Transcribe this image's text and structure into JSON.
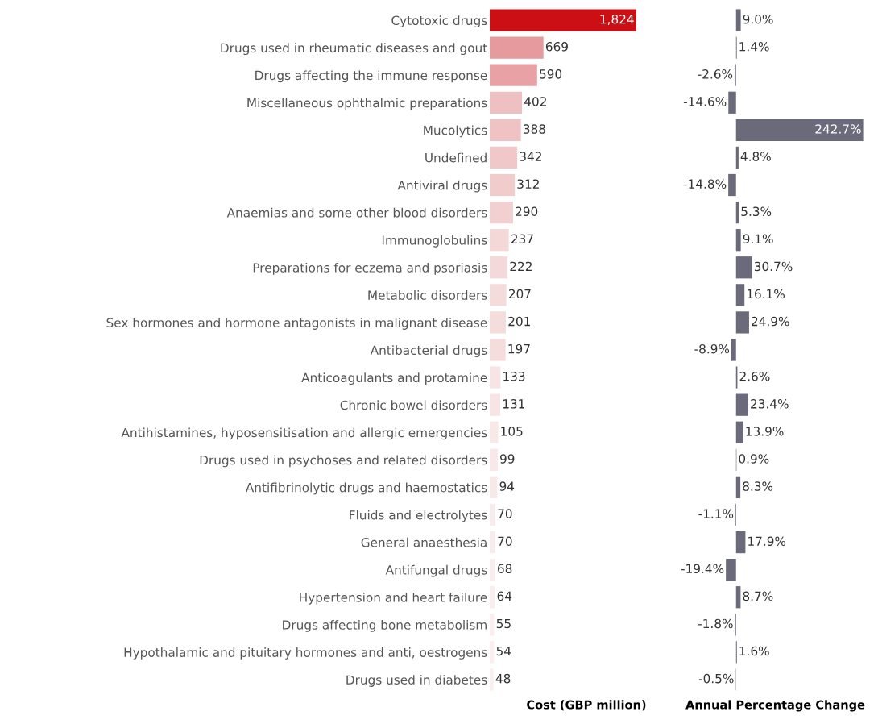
{
  "chart_data": [
    {
      "type": "bar",
      "orientation": "horizontal",
      "xlabel": "Cost (GBP million)",
      "tick_labels": "y",
      "categories": [
        "Cytotoxic drugs",
        "Drugs used in rheumatic diseases and gout",
        "Drugs affecting the immune response",
        "Miscellaneous ophthalmic preparations",
        "Mucolytics",
        "Undefined",
        "Antiviral drugs",
        "Anaemias and some other blood disorders",
        "Immunoglobulins",
        "Preparations for eczema and psoriasis",
        "Metabolic disorders",
        "Sex hormones and hormone antagonists in malignant disease",
        "Antibacterial drugs",
        "Anticoagulants and protamine",
        "Chronic bowel disorders",
        "Antihistamines, hyposensitisation and allergic emergencies",
        "Drugs used in psychoses and related disorders",
        "Antifibrinolytic drugs and haemostatics",
        "Fluids and electrolytes",
        "General anaesthesia",
        "Antifungal drugs",
        "Hypertension and heart failure",
        "Drugs affecting bone metabolism",
        "Hypothalamic and pituitary hormones and anti, oestrogens",
        "Drugs used in diabetes"
      ],
      "values": [
        1824,
        669,
        590,
        402,
        388,
        342,
        312,
        290,
        237,
        222,
        207,
        201,
        197,
        133,
        131,
        105,
        99,
        94,
        70,
        70,
        68,
        64,
        55,
        54,
        48
      ],
      "value_labels": [
        "1,824",
        "669",
        "590",
        "402",
        "388",
        "342",
        "312",
        "290",
        "237",
        "222",
        "207",
        "201",
        "197",
        "133",
        "131",
        "105",
        "99",
        "94",
        "70",
        "70",
        "68",
        "64",
        "55",
        "54",
        "48"
      ],
      "colors": [
        "#cc0f14",
        "#e69a9d",
        "#e8a2a5",
        "#efc0c1",
        "#efc2c3",
        "#f0c8c9",
        "#f1cccd",
        "#f2d0d1",
        "#f4d8d8",
        "#f4d9da",
        "#f5dcdc",
        "#f5dcdd",
        "#f5dddd",
        "#f7e4e4",
        "#f7e4e5",
        "#f8e8e8",
        "#f8e8e9",
        "#f8e9e9",
        "#f9ecec",
        "#f9ecec",
        "#f9ecec",
        "#f9eded",
        "#faeeee",
        "#faeeee",
        "#faefef"
      ]
    },
    {
      "type": "bar",
      "orientation": "horizontal",
      "xlabel": "Annual Percentage Change",
      "tick_labels": false,
      "categories": [
        null,
        null,
        null,
        null,
        null,
        null,
        null,
        null,
        null,
        null,
        null,
        null,
        null,
        null,
        null,
        null,
        null,
        null,
        null,
        null,
        null,
        null,
        null,
        null,
        null
      ],
      "values": [
        9.0,
        1.4,
        -2.6,
        -14.6,
        242.7,
        4.8,
        -14.8,
        5.3,
        9.1,
        30.7,
        16.1,
        24.9,
        -8.9,
        2.6,
        23.4,
        13.9,
        0.9,
        8.3,
        -1.1,
        17.9,
        -19.4,
        8.7,
        -1.8,
        1.6,
        -0.5
      ],
      "value_labels": [
        "9.0%",
        "1.4%",
        "-2.6%",
        "-14.6%",
        "242.7%",
        "4.8%",
        "-14.8%",
        "5.3%",
        "9.1%",
        "30.7%",
        "16.1%",
        "24.9%",
        "-8.9%",
        "2.6%",
        "23.4%",
        "13.9%",
        "0.9%",
        "8.3%",
        "-1.1%",
        "17.9%",
        "-19.4%",
        "8.7%",
        "-1.8%",
        "1.6%",
        "-0.5%"
      ],
      "color": "#6b6a7a"
    }
  ]
}
